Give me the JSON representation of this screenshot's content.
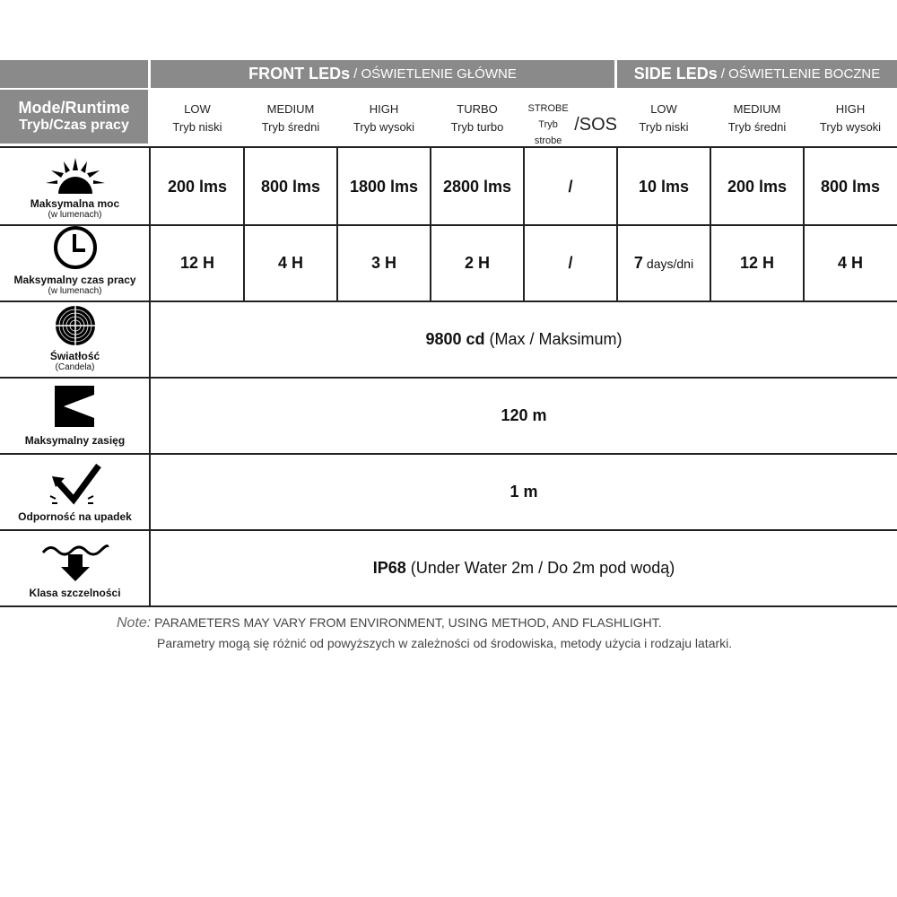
{
  "header": {
    "front_title": "FRONT LEDs",
    "front_sub": "/ OŚWIETLENIE GŁÓWNE",
    "side_title": "SIDE LEDs",
    "side_sub": "/ OŚWIETLENIE BOCZNE",
    "mode_label": "Mode/Runtime",
    "mode_sub": "Tryb/Czas pracy"
  },
  "columns": [
    {
      "en": "LOW",
      "pl": "Tryb  niski"
    },
    {
      "en": "MEDIUM",
      "pl": "Tryb  średni"
    },
    {
      "en": "HIGH",
      "pl": "Tryb  wysoki"
    },
    {
      "en": "TURBO",
      "pl": "Tryb turbo"
    },
    {
      "en": "STROBE",
      "pl": "Tryb strobe",
      "extra": "/SOS"
    },
    {
      "en": "LOW",
      "pl": "Tryb  niski"
    },
    {
      "en": "MEDIUM",
      "pl": "Tryb  średni"
    },
    {
      "en": "HIGH",
      "pl": "Tryb  wysoki"
    }
  ],
  "rows": {
    "output": {
      "label": "Maksymalna moc",
      "sub": "(w lumenach)",
      "icon": "sun-icon",
      "values": [
        "200 lms",
        "800 lms",
        "1800 lms",
        "2800 lms",
        "/",
        "10 lms",
        "200 lms",
        "800 lms"
      ]
    },
    "runtime": {
      "label": "Maksymalny czas pracy",
      "sub": "(w lumenach)",
      "icon": "clock-icon",
      "values": [
        "12 H",
        "4 H",
        "3 H",
        "2 H",
        "/",
        "7",
        "12 H",
        "4 H"
      ],
      "days_unit": "days/dni"
    },
    "intensity": {
      "label": "Światłość",
      "sub": "(Candela)",
      "icon": "target-icon",
      "value_bold": "9800 cd",
      "value_rest": " (Max / Maksimum)"
    },
    "distance": {
      "label": "Maksymalny zasięg",
      "icon": "beam-distance-icon",
      "value": "120 m"
    },
    "impact": {
      "label": "Odporność na upadek",
      "icon": "impact-resistance-icon",
      "value": "1 m"
    },
    "water": {
      "label": "Klasa szczelności",
      "icon": "waterproof-icon",
      "value_bold": "IP68",
      "value_rest": " (Under Water 2m / Do 2m pod wodą)"
    }
  },
  "note": {
    "label": "Note:",
    "en": "PARAMETERS MAY VARY FROM ENVIRONMENT, USING METHOD, AND FLASHLIGHT.",
    "pl": "Parametry mogą się różnić od powyższych w zależności od środowiska, metody użycia i rodzaju latarki."
  },
  "colors": {
    "header_grey": "#8a8a8a"
  }
}
